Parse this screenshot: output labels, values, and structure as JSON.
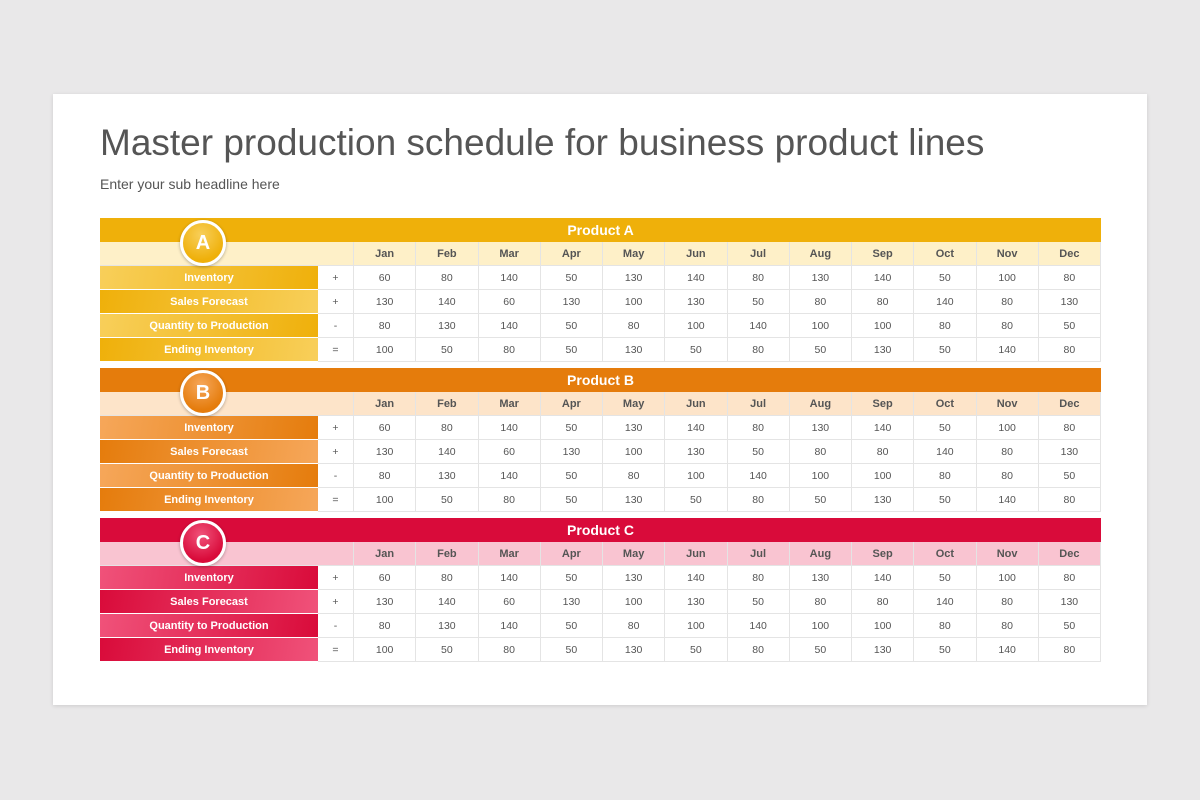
{
  "title": "Master production schedule for business product lines",
  "subtitle": "Enter your sub headline here",
  "months": [
    "Jan",
    "Feb",
    "Mar",
    "Apr",
    "May",
    "Jun",
    "Jul",
    "Aug",
    "Sep",
    "Oct",
    "Nov",
    "Dec"
  ],
  "products": [
    {
      "letter": "A",
      "name": "Product A",
      "color": "#EFB00A",
      "light": "#FEF0C8",
      "grad": "#F8CF5A",
      "rows": [
        {
          "label": "Inventory",
          "sign": "+",
          "values": [
            60,
            80,
            140,
            50,
            130,
            140,
            80,
            130,
            140,
            50,
            100,
            80
          ]
        },
        {
          "label": "Sales Forecast",
          "sign": "+",
          "values": [
            130,
            140,
            60,
            130,
            100,
            130,
            50,
            80,
            80,
            140,
            80,
            130
          ]
        },
        {
          "label": "Quantity to Production",
          "sign": "-",
          "values": [
            80,
            130,
            140,
            50,
            80,
            100,
            140,
            100,
            100,
            80,
            80,
            50
          ]
        },
        {
          "label": "Ending Inventory",
          "sign": "=",
          "values": [
            100,
            50,
            80,
            50,
            130,
            50,
            80,
            50,
            130,
            50,
            140,
            80
          ]
        }
      ]
    },
    {
      "letter": "B",
      "name": "Product B",
      "color": "#E57C0C",
      "light": "#FDE4C9",
      "grad": "#F6A75A",
      "rows": [
        {
          "label": "Inventory",
          "sign": "+",
          "values": [
            60,
            80,
            140,
            50,
            130,
            140,
            80,
            130,
            140,
            50,
            100,
            80
          ]
        },
        {
          "label": "Sales Forecast",
          "sign": "+",
          "values": [
            130,
            140,
            60,
            130,
            100,
            130,
            50,
            80,
            80,
            140,
            80,
            130
          ]
        },
        {
          "label": "Quantity to Production",
          "sign": "-",
          "values": [
            80,
            130,
            140,
            50,
            80,
            100,
            140,
            100,
            100,
            80,
            80,
            50
          ]
        },
        {
          "label": "Ending Inventory",
          "sign": "=",
          "values": [
            100,
            50,
            80,
            50,
            130,
            50,
            80,
            50,
            130,
            50,
            140,
            80
          ]
        }
      ]
    },
    {
      "letter": "C",
      "name": "Product C",
      "color": "#D90B3A",
      "light": "#F9C4D1",
      "grad": "#F0527A",
      "rows": [
        {
          "label": "Inventory",
          "sign": "+",
          "values": [
            60,
            80,
            140,
            50,
            130,
            140,
            80,
            130,
            140,
            50,
            100,
            80
          ]
        },
        {
          "label": "Sales Forecast",
          "sign": "+",
          "values": [
            130,
            140,
            60,
            130,
            100,
            130,
            50,
            80,
            80,
            140,
            80,
            130
          ]
        },
        {
          "label": "Quantity to Production",
          "sign": "-",
          "values": [
            80,
            130,
            140,
            50,
            80,
            100,
            140,
            100,
            100,
            80,
            80,
            50
          ]
        },
        {
          "label": "Ending Inventory",
          "sign": "=",
          "values": [
            100,
            50,
            80,
            50,
            130,
            50,
            80,
            50,
            130,
            50,
            140,
            80
          ]
        }
      ]
    }
  ]
}
